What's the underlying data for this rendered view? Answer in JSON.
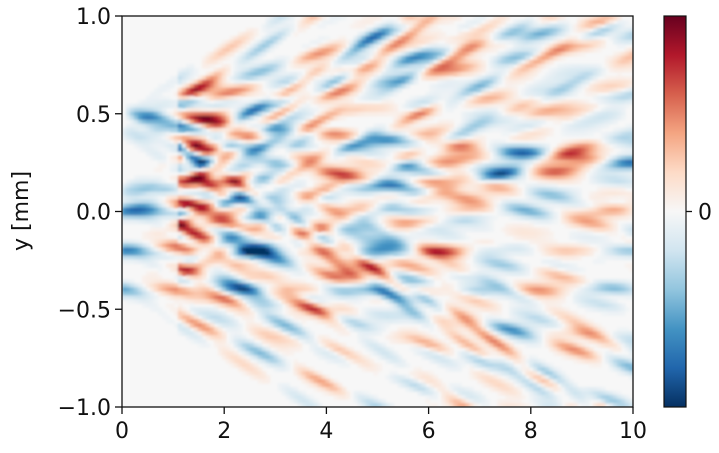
{
  "chart_data": {
    "type": "heatmap",
    "title": "",
    "xlabel": "",
    "ylabel": "y [mm]",
    "xlim": [
      0,
      10
    ],
    "ylim": [
      -1.0,
      1.0
    ],
    "x_ticks": [
      {
        "value": 0,
        "label": "0"
      },
      {
        "value": 2,
        "label": "2"
      },
      {
        "value": 4,
        "label": "4"
      },
      {
        "value": 6,
        "label": "6"
      },
      {
        "value": 8,
        "label": "8"
      },
      {
        "value": 10,
        "label": "10"
      }
    ],
    "y_ticks": [
      {
        "value": 1.0,
        "label": "1.0"
      },
      {
        "value": 0.5,
        "label": "0.5"
      },
      {
        "value": 0.0,
        "label": "0.0"
      },
      {
        "value": -0.5,
        "label": "−0.5"
      },
      {
        "value": -1.0,
        "label": "−1.0"
      }
    ],
    "colormap": "RdBu_r",
    "colorbar": {
      "ticks": [
        {
          "value": 0,
          "label": "0"
        }
      ],
      "colors": [
        "#053061",
        "#2166ac",
        "#4393c3",
        "#92c5de",
        "#d1e5f0",
        "#f7f7f7",
        "#fddbc7",
        "#f4a582",
        "#d6604d",
        "#b2182b",
        "#67001f"
      ]
    },
    "source_rows_y": [
      0.5,
      0.4,
      0.1,
      0.0,
      -0.2,
      -0.4
    ],
    "grid": false
  }
}
